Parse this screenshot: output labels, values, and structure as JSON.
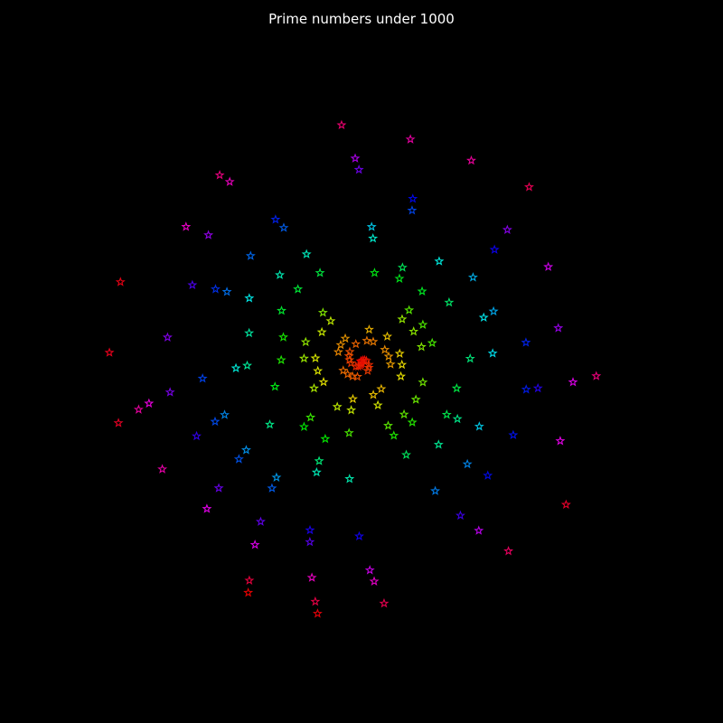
{
  "chart_data": {
    "type": "scatter",
    "title": "Prime numbers under 1000",
    "plot": "polar-spiral",
    "coordinate_mapping": "radius = p, angle = p radians",
    "marker": "star",
    "colormap": "hsv",
    "color_encoding": "prime value 2 to 997",
    "background": "#000000",
    "axes_visible": false,
    "grid": false,
    "legend": "none",
    "primes": [
      2,
      3,
      5,
      7,
      11,
      13,
      17,
      19,
      23,
      29,
      31,
      37,
      41,
      43,
      47,
      53,
      59,
      61,
      67,
      71,
      73,
      79,
      83,
      89,
      97,
      101,
      103,
      107,
      109,
      113,
      127,
      131,
      137,
      139,
      149,
      151,
      157,
      163,
      167,
      173,
      179,
      181,
      191,
      193,
      197,
      199,
      211,
      223,
      227,
      229,
      233,
      239,
      241,
      251,
      257,
      263,
      269,
      271,
      277,
      281,
      283,
      293,
      307,
      311,
      313,
      317,
      331,
      337,
      347,
      349,
      353,
      359,
      367,
      373,
      379,
      383,
      389,
      397,
      401,
      409,
      419,
      421,
      431,
      433,
      439,
      443,
      449,
      457,
      461,
      463,
      467,
      479,
      487,
      491,
      499,
      503,
      509,
      521,
      523,
      541,
      547,
      557,
      563,
      569,
      571,
      577,
      587,
      593,
      599,
      601,
      607,
      613,
      617,
      619,
      631,
      641,
      643,
      647,
      653,
      659,
      661,
      673,
      677,
      683,
      691,
      701,
      709,
      719,
      727,
      733,
      739,
      743,
      751,
      757,
      761,
      769,
      773,
      787,
      797,
      809,
      811,
      821,
      823,
      827,
      829,
      839,
      853,
      857,
      859,
      863,
      877,
      881,
      883,
      887,
      907,
      911,
      919,
      929,
      937,
      941,
      947,
      953,
      967,
      971,
      977,
      983,
      991,
      997
    ]
  }
}
